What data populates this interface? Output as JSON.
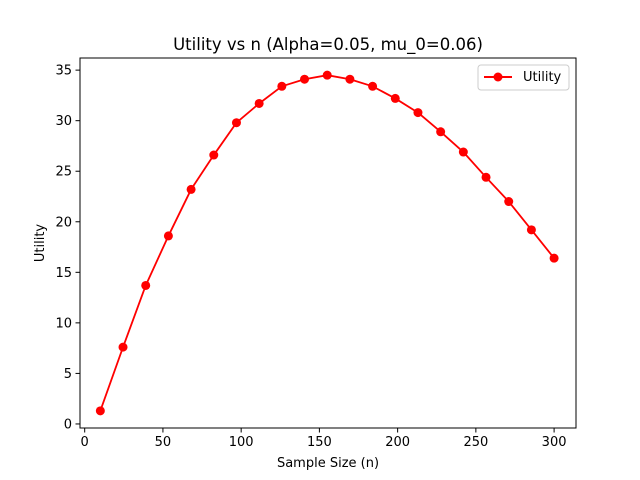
{
  "chart_data": {
    "type": "line",
    "title": "Utility vs n (Alpha=0.05, mu_0=0.06)",
    "xlabel": "Sample Size (n)",
    "ylabel": "Utility",
    "xlim": [
      -3,
      314
    ],
    "ylim": [
      -0.4,
      36.2
    ],
    "xticks": [
      0,
      50,
      100,
      150,
      200,
      250,
      300
    ],
    "yticks": [
      0,
      5,
      10,
      15,
      20,
      25,
      30,
      35
    ],
    "grid": false,
    "legend_position": "top-right",
    "series": [
      {
        "name": "Utility",
        "color": "#ff0000",
        "marker": "circle",
        "x": [
          10,
          24.5,
          39,
          53.5,
          68,
          82.5,
          97,
          111.5,
          126,
          140.5,
          155,
          169.5,
          184,
          198.5,
          213,
          227.5,
          242,
          256.5,
          271,
          285.5,
          300
        ],
        "y": [
          1.3,
          7.6,
          13.7,
          18.6,
          23.2,
          26.6,
          29.8,
          31.7,
          33.4,
          34.1,
          34.5,
          34.1,
          33.4,
          32.2,
          30.8,
          28.9,
          26.9,
          24.4,
          22.0,
          19.2,
          16.4
        ]
      }
    ]
  }
}
